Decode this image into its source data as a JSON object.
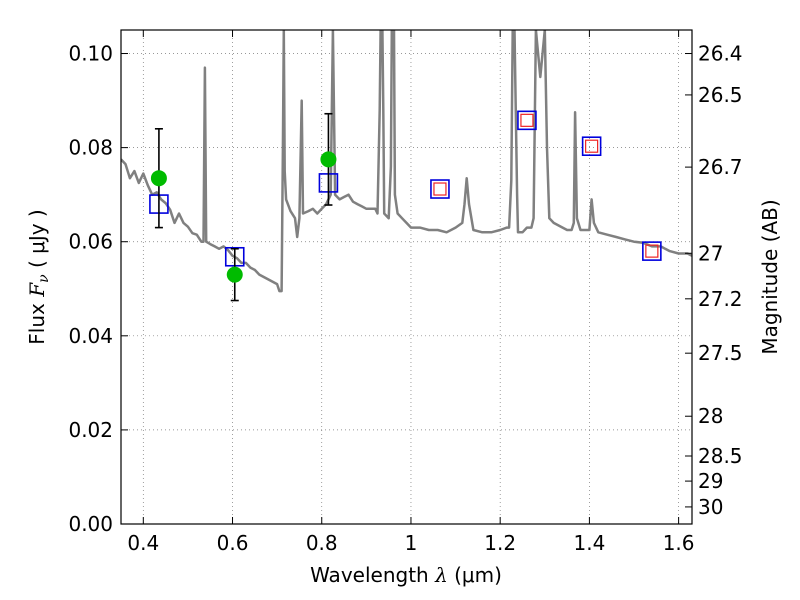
{
  "chart_data": {
    "type": "scatter",
    "xlabel_prefix": "Wavelength ",
    "xlabel_symbol": "λ",
    "xlabel_unit": "(μm)",
    "ylabel_prefix": "Flux ",
    "ylabel_symbol": "F",
    "ylabel_sub": "ν",
    "ylabel_unit": "( μJy )",
    "y2label": "Magnitude (AB)",
    "xlim": [
      0.35,
      1.63
    ],
    "ylim": [
      0.0,
      0.105
    ],
    "grid": true,
    "x_ticks": [
      0.4,
      0.6,
      0.8,
      1.0,
      1.2,
      1.4,
      1.6
    ],
    "x_tick_labels": [
      "0.4",
      "0.6",
      "0.8",
      "1",
      "1.2",
      "1.4",
      "1.6"
    ],
    "y_ticks": [
      0.0,
      0.02,
      0.04,
      0.06,
      0.08,
      0.1
    ],
    "y_tick_labels": [
      "0.00",
      "0.02",
      "0.04",
      "0.06",
      "0.08",
      "0.10"
    ],
    "mag_ticks": [
      26.4,
      26.5,
      26.7,
      27,
      27.2,
      27.5,
      28,
      28.5,
      29,
      30
    ],
    "mag_tick_labels": [
      "26.4",
      "26.5",
      "26.7",
      "27",
      "27.2",
      "27.5",
      "28",
      "28.5",
      "29",
      "30"
    ],
    "series": [
      {
        "kind": "model_spectrum",
        "color": "#808080",
        "points": [
          [
            0.35,
            0.0775
          ],
          [
            0.36,
            0.0765
          ],
          [
            0.37,
            0.0735
          ],
          [
            0.38,
            0.075
          ],
          [
            0.39,
            0.0725
          ],
          [
            0.4,
            0.0745
          ],
          [
            0.41,
            0.072
          ],
          [
            0.42,
            0.07
          ],
          [
            0.43,
            0.0705
          ],
          [
            0.44,
            0.069
          ],
          [
            0.45,
            0.0682
          ],
          [
            0.46,
            0.0668
          ],
          [
            0.47,
            0.064
          ],
          [
            0.48,
            0.066
          ],
          [
            0.49,
            0.064
          ],
          [
            0.5,
            0.0632
          ],
          [
            0.51,
            0.0618
          ],
          [
            0.52,
            0.0615
          ],
          [
            0.53,
            0.06
          ],
          [
            0.535,
            0.06
          ],
          [
            0.538,
            0.097
          ],
          [
            0.541,
            0.06
          ],
          [
            0.55,
            0.0595
          ],
          [
            0.56,
            0.059
          ],
          [
            0.57,
            0.0585
          ],
          [
            0.58,
            0.059
          ],
          [
            0.59,
            0.0582
          ],
          [
            0.6,
            0.057
          ],
          [
            0.61,
            0.0565
          ],
          [
            0.62,
            0.0555
          ],
          [
            0.63,
            0.0555
          ],
          [
            0.64,
            0.0545
          ],
          [
            0.65,
            0.054
          ],
          [
            0.66,
            0.053
          ],
          [
            0.68,
            0.052
          ],
          [
            0.7,
            0.051
          ],
          [
            0.705,
            0.0495
          ],
          [
            0.71,
            0.0495
          ],
          [
            0.713,
            0.08
          ],
          [
            0.715,
            0.105
          ],
          [
            0.717,
            0.075
          ],
          [
            0.72,
            0.069
          ],
          [
            0.73,
            0.0665
          ],
          [
            0.74,
            0.065
          ],
          [
            0.745,
            0.061
          ],
          [
            0.75,
            0.065
          ],
          [
            0.755,
            0.09
          ],
          [
            0.758,
            0.066
          ],
          [
            0.77,
            0.0665
          ],
          [
            0.78,
            0.067
          ],
          [
            0.79,
            0.066
          ],
          [
            0.8,
            0.067
          ],
          [
            0.81,
            0.068
          ],
          [
            0.82,
            0.07
          ],
          [
            0.825,
            0.105
          ],
          [
            0.83,
            0.07
          ],
          [
            0.84,
            0.069
          ],
          [
            0.85,
            0.0695
          ],
          [
            0.86,
            0.07
          ],
          [
            0.87,
            0.0685
          ],
          [
            0.88,
            0.068
          ],
          [
            0.89,
            0.0675
          ],
          [
            0.9,
            0.067
          ],
          [
            0.92,
            0.067
          ],
          [
            0.925,
            0.066
          ],
          [
            0.93,
            0.088
          ],
          [
            0.932,
            0.105
          ],
          [
            0.936,
            0.105
          ],
          [
            0.938,
            0.088
          ],
          [
            0.94,
            0.066
          ],
          [
            0.95,
            0.065
          ],
          [
            0.955,
            0.076
          ],
          [
            0.957,
            0.105
          ],
          [
            0.962,
            0.105
          ],
          [
            0.964,
            0.07
          ],
          [
            0.97,
            0.066
          ],
          [
            0.98,
            0.065
          ],
          [
            0.99,
            0.064
          ],
          [
            1.0,
            0.063
          ],
          [
            1.02,
            0.063
          ],
          [
            1.04,
            0.0625
          ],
          [
            1.06,
            0.0625
          ],
          [
            1.08,
            0.062
          ],
          [
            1.1,
            0.063
          ],
          [
            1.115,
            0.064
          ],
          [
            1.12,
            0.068
          ],
          [
            1.125,
            0.0735
          ],
          [
            1.13,
            0.068
          ],
          [
            1.14,
            0.0625
          ],
          [
            1.16,
            0.062
          ],
          [
            1.18,
            0.062
          ],
          [
            1.2,
            0.0625
          ],
          [
            1.215,
            0.063
          ],
          [
            1.22,
            0.063
          ],
          [
            1.225,
            0.073
          ],
          [
            1.228,
            0.105
          ],
          [
            1.232,
            0.105
          ],
          [
            1.238,
            0.07
          ],
          [
            1.24,
            0.062
          ],
          [
            1.25,
            0.062
          ],
          [
            1.26,
            0.063
          ],
          [
            1.27,
            0.063
          ],
          [
            1.275,
            0.065
          ],
          [
            1.28,
            0.105
          ],
          [
            1.29,
            0.095
          ],
          [
            1.3,
            0.105
          ],
          [
            1.305,
            0.08
          ],
          [
            1.31,
            0.065
          ],
          [
            1.32,
            0.064
          ],
          [
            1.34,
            0.063
          ],
          [
            1.35,
            0.0625
          ],
          [
            1.36,
            0.0625
          ],
          [
            1.365,
            0.064
          ],
          [
            1.368,
            0.0875
          ],
          [
            1.372,
            0.065
          ],
          [
            1.38,
            0.0625
          ],
          [
            1.4,
            0.0625
          ],
          [
            1.405,
            0.069
          ],
          [
            1.41,
            0.064
          ],
          [
            1.42,
            0.062
          ],
          [
            1.44,
            0.0615
          ],
          [
            1.46,
            0.061
          ],
          [
            1.48,
            0.0605
          ],
          [
            1.5,
            0.06
          ],
          [
            1.52,
            0.0598
          ],
          [
            1.54,
            0.059
          ],
          [
            1.56,
            0.059
          ],
          [
            1.57,
            0.0585
          ],
          [
            1.58,
            0.058
          ],
          [
            1.6,
            0.0575
          ],
          [
            1.62,
            0.0575
          ],
          [
            1.63,
            0.057
          ]
        ]
      },
      {
        "kind": "observed_photometry",
        "marker": "filled-circle",
        "color": "#00bb00",
        "points": [
          {
            "x": 0.435,
            "y": 0.0735,
            "yerr_low": 0.0105,
            "yerr_high": 0.0105
          },
          {
            "x": 0.605,
            "y": 0.053,
            "yerr_low": 0.0055,
            "yerr_high": 0.0055
          },
          {
            "x": 0.815,
            "y": 0.0775,
            "yerr_low": 0.0097,
            "yerr_high": 0.0097
          }
        ]
      },
      {
        "kind": "model_photometry",
        "marker": "open-square",
        "color": "#0000dd",
        "points": [
          {
            "x": 0.435,
            "y": 0.068
          },
          {
            "x": 0.605,
            "y": 0.0568
          },
          {
            "x": 0.815,
            "y": 0.0725
          },
          {
            "x": 1.065,
            "y": 0.0712
          },
          {
            "x": 1.26,
            "y": 0.0858
          },
          {
            "x": 1.405,
            "y": 0.0803
          },
          {
            "x": 1.54,
            "y": 0.058
          }
        ]
      },
      {
        "kind": "model_photometry_nir",
        "marker": "open-square",
        "color": "#ee2222",
        "points": [
          {
            "x": 1.065,
            "y": 0.0712
          },
          {
            "x": 1.26,
            "y": 0.0858
          },
          {
            "x": 1.405,
            "y": 0.0803
          },
          {
            "x": 1.54,
            "y": 0.058
          }
        ]
      }
    ]
  }
}
